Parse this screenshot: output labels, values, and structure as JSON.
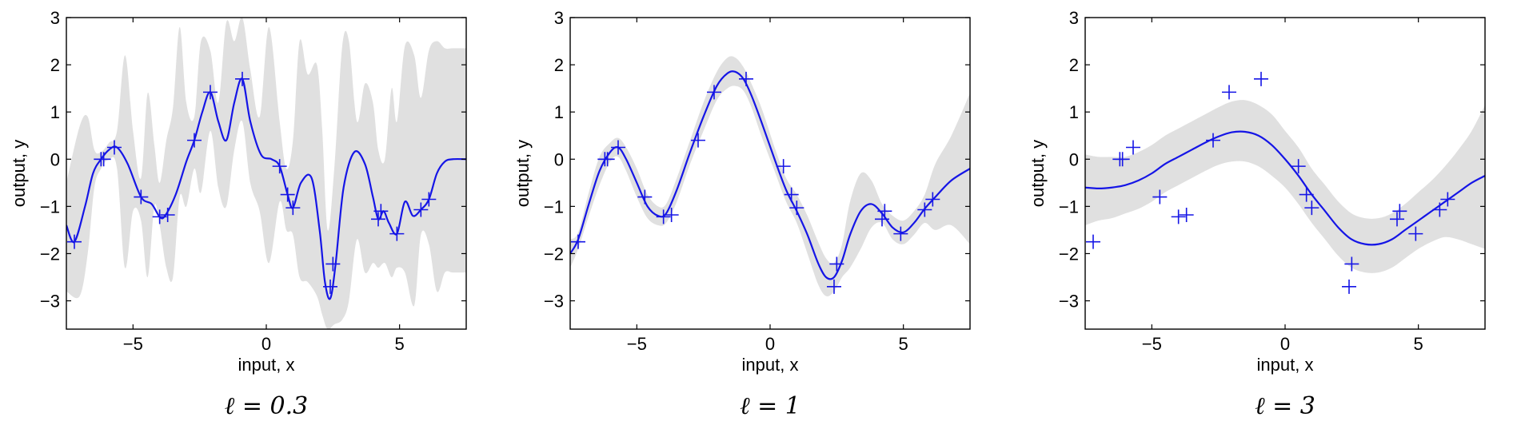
{
  "chart_data": [
    {
      "type": "line",
      "caption": "ℓ = 0.3",
      "xlabel": "input, x",
      "ylabel": "output, y",
      "xlim": [
        -7.5,
        7.5
      ],
      "ylim": [
        -3.6,
        3
      ],
      "xticks": [
        -5,
        0,
        5
      ],
      "xtick_labels": [
        "−5",
        "0",
        "5"
      ],
      "yticks": [
        3,
        2,
        1,
        0,
        -1,
        -2,
        -3
      ],
      "ytick_labels": [
        "3",
        "2",
        "1",
        "0",
        "−1",
        "−2",
        "−3"
      ],
      "grid": false,
      "observations": {
        "x": [
          -7.2,
          -6.2,
          -6.1,
          -5.7,
          -4.7,
          -4.0,
          -3.7,
          -2.7,
          -2.1,
          -0.9,
          0.5,
          0.8,
          1.0,
          2.4,
          2.5,
          4.2,
          4.3,
          4.9,
          5.8,
          6.1
        ],
        "y": [
          -1.75,
          0.0,
          0.0,
          0.25,
          -0.8,
          -1.22,
          -1.18,
          0.4,
          1.42,
          1.7,
          -0.15,
          -0.75,
          -1.03,
          -2.7,
          -2.22,
          -1.27,
          -1.1,
          -1.58,
          -1.07,
          -0.85
        ]
      },
      "mean": {
        "x": [
          -7.5,
          -7.2,
          -6.8,
          -6.5,
          -6.2,
          -5.9,
          -5.6,
          -5.2,
          -4.7,
          -4.3,
          -4.0,
          -3.8,
          -3.4,
          -3.0,
          -2.7,
          -2.4,
          -2.1,
          -1.8,
          -1.5,
          -1.2,
          -0.9,
          -0.6,
          -0.2,
          0.2,
          0.5,
          0.8,
          1.0,
          1.3,
          1.7,
          2.0,
          2.2,
          2.4,
          2.6,
          2.9,
          3.3,
          3.7,
          4.0,
          4.2,
          4.4,
          4.6,
          4.9,
          5.2,
          5.5,
          5.8,
          6.1,
          6.4,
          6.7,
          7.0,
          7.5
        ],
        "y": [
          -1.4,
          -1.75,
          -1.0,
          -0.3,
          0.0,
          0.2,
          0.25,
          -0.1,
          -0.8,
          -0.95,
          -1.22,
          -1.2,
          -0.75,
          -0.05,
          0.4,
          1.0,
          1.42,
          0.8,
          0.4,
          1.2,
          1.7,
          0.8,
          0.1,
          0.0,
          -0.15,
          -0.75,
          -1.03,
          -0.5,
          -0.4,
          -1.5,
          -2.6,
          -2.95,
          -2.22,
          -0.6,
          0.15,
          -0.1,
          -0.8,
          -1.27,
          -1.1,
          -1.35,
          -1.58,
          -0.9,
          -1.2,
          -1.07,
          -0.85,
          -0.3,
          -0.05,
          0.0,
          0.0
        ]
      },
      "band": {
        "x": [
          -7.5,
          -7.0,
          -6.7,
          -6.45,
          -6.2,
          -5.9,
          -5.6,
          -5.3,
          -5.0,
          -4.7,
          -4.45,
          -4.2,
          -4.0,
          -3.75,
          -3.5,
          -3.25,
          -3.0,
          -2.7,
          -2.45,
          -2.1,
          -1.8,
          -1.5,
          -1.2,
          -0.9,
          -0.6,
          -0.25,
          0.1,
          0.5,
          0.75,
          1.0,
          1.25,
          1.55,
          1.9,
          2.1,
          2.3,
          2.55,
          2.85,
          3.1,
          3.4,
          3.7,
          4.0,
          4.2,
          4.45,
          4.7,
          4.9,
          5.2,
          5.55,
          5.8,
          6.1,
          6.4,
          6.7,
          7.0,
          7.5
        ],
        "upper": [
          -0.5,
          0.7,
          0.9,
          0.2,
          0.15,
          0.35,
          0.6,
          2.2,
          0.6,
          -0.4,
          1.4,
          0.3,
          -0.5,
          0.4,
          1.1,
          2.8,
          1.2,
          0.9,
          2.5,
          2.3,
          1.2,
          2.9,
          2.5,
          3.0,
          1.9,
          0.9,
          2.8,
          0.8,
          -0.2,
          0.4,
          2.5,
          1.8,
          2.0,
          0.6,
          -1.5,
          -0.2,
          2.4,
          2.5,
          0.8,
          1.6,
          1.2,
          0.2,
          0.0,
          1.5,
          0.8,
          2.4,
          2.2,
          1.3,
          2.3,
          2.5,
          2.35,
          2.35,
          2.35
        ],
        "lower": [
          -2.8,
          -2.9,
          -2.0,
          -0.6,
          -0.2,
          0.0,
          -0.2,
          -2.3,
          -1.1,
          -1.3,
          -2.5,
          -1.0,
          -1.4,
          -2.3,
          -2.5,
          -0.8,
          -1.0,
          -0.2,
          -0.7,
          0.6,
          -0.6,
          -1.0,
          0.2,
          0.8,
          -0.5,
          -1.1,
          -2.2,
          -0.9,
          -1.5,
          -1.6,
          -2.5,
          -2.6,
          -2.9,
          -3.3,
          -3.6,
          -3.5,
          -3.4,
          -3.0,
          -1.7,
          -2.4,
          -2.2,
          -2.3,
          -2.2,
          -2.5,
          -2.3,
          -2.4,
          -3.1,
          -1.6,
          -1.8,
          -2.8,
          -2.4,
          -2.4,
          -2.4
        ]
      }
    },
    {
      "type": "line",
      "caption": "ℓ = 1",
      "xlabel": "input, x",
      "ylabel": "output, y",
      "xlim": [
        -7.5,
        7.5
      ],
      "ylim": [
        -3.6,
        3
      ],
      "xticks": [
        -5,
        0,
        5
      ],
      "xtick_labels": [
        "−5",
        "0",
        "5"
      ],
      "yticks": [
        3,
        2,
        1,
        0,
        -1,
        -2,
        -3
      ],
      "ytick_labels": [
        "3",
        "2",
        "1",
        "0",
        "−1",
        "−2",
        "−3"
      ],
      "grid": false,
      "observations": {
        "x": [
          -7.2,
          -6.2,
          -6.1,
          -5.7,
          -4.7,
          -4.0,
          -3.7,
          -2.7,
          -2.1,
          -0.9,
          0.5,
          0.8,
          1.0,
          2.4,
          2.5,
          4.2,
          4.3,
          4.9,
          5.8,
          6.1
        ],
        "y": [
          -1.75,
          0.0,
          0.0,
          0.25,
          -0.8,
          -1.22,
          -1.18,
          0.4,
          1.42,
          1.7,
          -0.15,
          -0.75,
          -1.03,
          -2.7,
          -2.22,
          -1.27,
          -1.1,
          -1.58,
          -1.07,
          -0.85
        ]
      },
      "mean": {
        "x": [
          -7.5,
          -7.2,
          -6.8,
          -6.4,
          -6.0,
          -5.7,
          -5.4,
          -5.0,
          -4.6,
          -4.2,
          -3.9,
          -3.5,
          -3.0,
          -2.5,
          -2.0,
          -1.6,
          -1.3,
          -1.0,
          -0.7,
          -0.3,
          0.2,
          0.6,
          1.0,
          1.4,
          1.8,
          2.1,
          2.4,
          2.7,
          3.0,
          3.4,
          3.8,
          4.2,
          4.6,
          5.0,
          5.4,
          5.8,
          6.2,
          6.8,
          7.5
        ],
        "y": [
          -2.0,
          -1.7,
          -0.95,
          -0.25,
          0.15,
          0.25,
          0.0,
          -0.5,
          -1.0,
          -1.2,
          -1.15,
          -0.65,
          0.15,
          0.9,
          1.55,
          1.82,
          1.85,
          1.7,
          1.35,
          0.75,
          -0.05,
          -0.65,
          -1.1,
          -1.6,
          -2.2,
          -2.5,
          -2.5,
          -2.15,
          -1.6,
          -1.1,
          -0.95,
          -1.15,
          -1.45,
          -1.55,
          -1.35,
          -1.05,
          -0.8,
          -0.45,
          -0.2
        ]
      },
      "band": {
        "x": [
          -7.5,
          -7.2,
          -6.8,
          -6.4,
          -6.0,
          -5.7,
          -5.4,
          -5.0,
          -4.6,
          -4.2,
          -3.9,
          -3.5,
          -3.0,
          -2.5,
          -2.0,
          -1.6,
          -1.3,
          -1.0,
          -0.7,
          -0.3,
          0.2,
          0.6,
          1.0,
          1.4,
          1.8,
          2.1,
          2.4,
          2.7,
          3.0,
          3.4,
          3.8,
          4.2,
          4.6,
          5.0,
          5.4,
          5.8,
          6.2,
          6.8,
          7.5
        ],
        "upper": [
          -1.7,
          -1.55,
          -0.7,
          0.05,
          0.35,
          0.45,
          0.25,
          -0.2,
          -0.75,
          -1.0,
          -0.95,
          -0.4,
          0.4,
          1.2,
          1.85,
          2.15,
          2.15,
          1.95,
          1.6,
          1.05,
          0.2,
          -0.4,
          -0.75,
          -1.2,
          -1.75,
          -2.1,
          -2.2,
          -1.8,
          -0.9,
          -0.3,
          -0.45,
          -0.95,
          -1.2,
          -1.3,
          -1.1,
          -0.75,
          -0.1,
          0.5,
          1.4
        ],
        "lower": [
          -2.3,
          -1.9,
          -1.2,
          -0.55,
          -0.05,
          0.05,
          -0.25,
          -0.8,
          -1.25,
          -1.4,
          -1.35,
          -0.9,
          -0.1,
          0.6,
          1.25,
          1.5,
          1.55,
          1.45,
          1.1,
          0.45,
          -0.3,
          -0.9,
          -1.35,
          -2.0,
          -2.65,
          -2.9,
          -2.8,
          -2.5,
          -2.3,
          -1.9,
          -1.45,
          -1.35,
          -1.7,
          -1.8,
          -1.6,
          -1.35,
          -1.5,
          -1.4,
          -1.8
        ]
      }
    },
    {
      "type": "line",
      "caption": "ℓ = 3",
      "xlabel": "input, x",
      "ylabel": "output, y",
      "xlim": [
        -7.5,
        7.5
      ],
      "ylim": [
        -3.6,
        3
      ],
      "xticks": [
        -5,
        0,
        5
      ],
      "xtick_labels": [
        "−5",
        "0",
        "5"
      ],
      "yticks": [
        3,
        2,
        1,
        0,
        -1,
        -2,
        -3
      ],
      "ytick_labels": [
        "3",
        "2",
        "1",
        "0",
        "−1",
        "−2",
        "−3"
      ],
      "grid": false,
      "observations": {
        "x": [
          -7.2,
          -6.2,
          -6.1,
          -5.7,
          -4.7,
          -4.0,
          -3.7,
          -2.7,
          -2.1,
          -0.9,
          0.5,
          0.8,
          1.0,
          2.4,
          2.5,
          4.2,
          4.3,
          4.9,
          5.8,
          6.1
        ],
        "y": [
          -1.75,
          0.0,
          0.0,
          0.25,
          -0.8,
          -1.22,
          -1.18,
          0.4,
          1.42,
          1.7,
          -0.15,
          -0.75,
          -1.03,
          -2.7,
          -2.22,
          -1.27,
          -1.1,
          -1.58,
          -1.07,
          -0.85
        ]
      },
      "mean": {
        "x": [
          -7.5,
          -7.0,
          -6.5,
          -6.0,
          -5.5,
          -5.0,
          -4.5,
          -4.0,
          -3.5,
          -3.0,
          -2.5,
          -2.0,
          -1.5,
          -1.0,
          -0.5,
          0.0,
          0.5,
          1.0,
          1.5,
          2.0,
          2.5,
          3.0,
          3.5,
          4.0,
          4.5,
          5.0,
          5.5,
          6.0,
          6.5,
          7.0,
          7.5
        ],
        "y": [
          -0.6,
          -0.62,
          -0.6,
          -0.55,
          -0.45,
          -0.3,
          -0.1,
          0.05,
          0.2,
          0.35,
          0.48,
          0.57,
          0.58,
          0.5,
          0.3,
          0.0,
          -0.35,
          -0.75,
          -1.1,
          -1.45,
          -1.7,
          -1.8,
          -1.8,
          -1.7,
          -1.5,
          -1.3,
          -1.1,
          -0.9,
          -0.7,
          -0.5,
          -0.35
        ]
      },
      "band": {
        "x": [
          -7.5,
          -7.0,
          -6.5,
          -6.0,
          -5.5,
          -5.0,
          -4.5,
          -4.0,
          -3.5,
          -3.0,
          -2.5,
          -2.0,
          -1.5,
          -1.0,
          -0.5,
          0.0,
          0.5,
          1.0,
          1.5,
          2.0,
          2.5,
          3.0,
          3.5,
          4.0,
          4.5,
          5.0,
          5.5,
          6.0,
          6.5,
          7.0,
          7.5
        ],
        "upper": [
          0.1,
          0.05,
          0.05,
          0.05,
          0.15,
          0.3,
          0.5,
          0.65,
          0.8,
          0.95,
          1.1,
          1.22,
          1.25,
          1.15,
          0.95,
          0.6,
          0.25,
          -0.2,
          -0.55,
          -0.9,
          -1.15,
          -1.25,
          -1.25,
          -1.15,
          -0.95,
          -0.7,
          -0.45,
          -0.15,
          0.2,
          0.6,
          1.15
        ],
        "lower": [
          -1.4,
          -1.3,
          -1.25,
          -1.15,
          -1.05,
          -0.9,
          -0.7,
          -0.55,
          -0.4,
          -0.25,
          -0.12,
          -0.05,
          -0.05,
          -0.15,
          -0.35,
          -0.6,
          -0.95,
          -1.35,
          -1.7,
          -2.05,
          -2.3,
          -2.4,
          -2.4,
          -2.3,
          -2.1,
          -1.9,
          -1.75,
          -1.65,
          -1.7,
          -1.8,
          -1.9
        ]
      }
    }
  ],
  "colors": {
    "mean_line": "#1515e6",
    "markers": "#1515e6",
    "band": "#e0e0e0",
    "axes": "#000000"
  }
}
